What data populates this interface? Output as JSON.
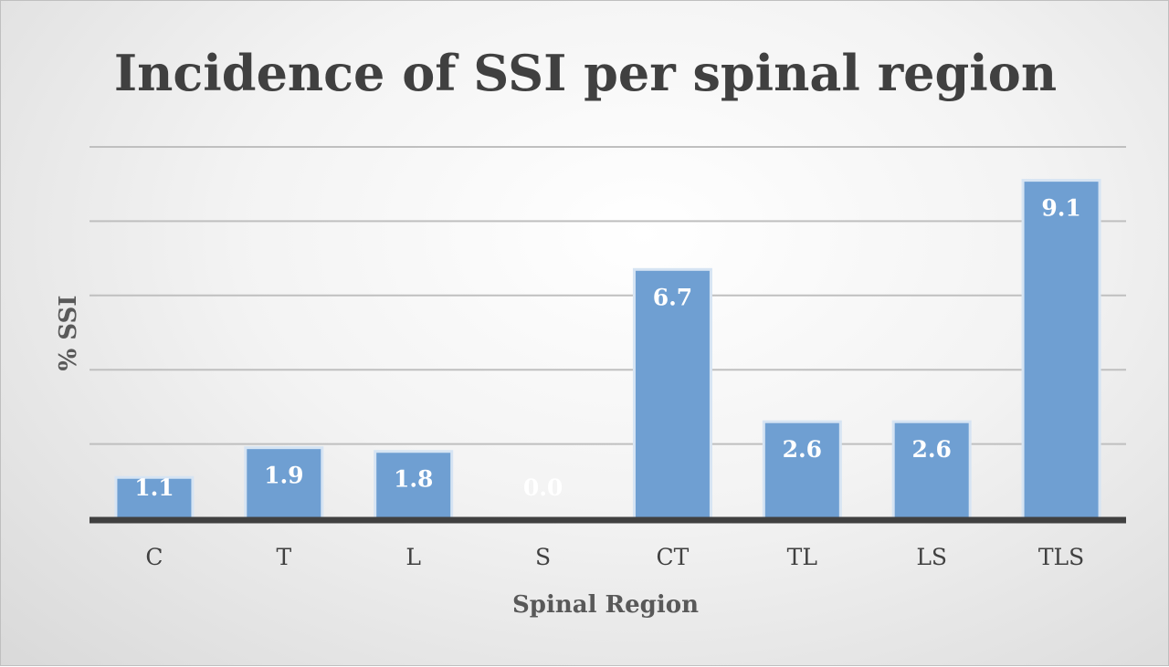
{
  "chart_data": {
    "type": "bar",
    "title": "Incidence of SSI per spinal region",
    "xlabel": "Spinal Region",
    "ylabel": "% SSI",
    "categories": [
      "C",
      "T",
      "L",
      "S",
      "CT",
      "TL",
      "LS",
      "TLS"
    ],
    "values": [
      1.1,
      1.9,
      1.8,
      0.0,
      6.7,
      2.6,
      2.6,
      9.1
    ],
    "data_labels": [
      "1.1",
      "1.9",
      "1.8",
      "0.0",
      "6.7",
      "2.6",
      "2.6",
      "9.1"
    ],
    "ylim": [
      0,
      10
    ],
    "grid": true,
    "legend": "none",
    "colors": {
      "bar_fill": "#6f9fd2",
      "bar_stroke": "#d6e4f3",
      "grid": "#bfbfbf",
      "axis": "#404040"
    }
  }
}
